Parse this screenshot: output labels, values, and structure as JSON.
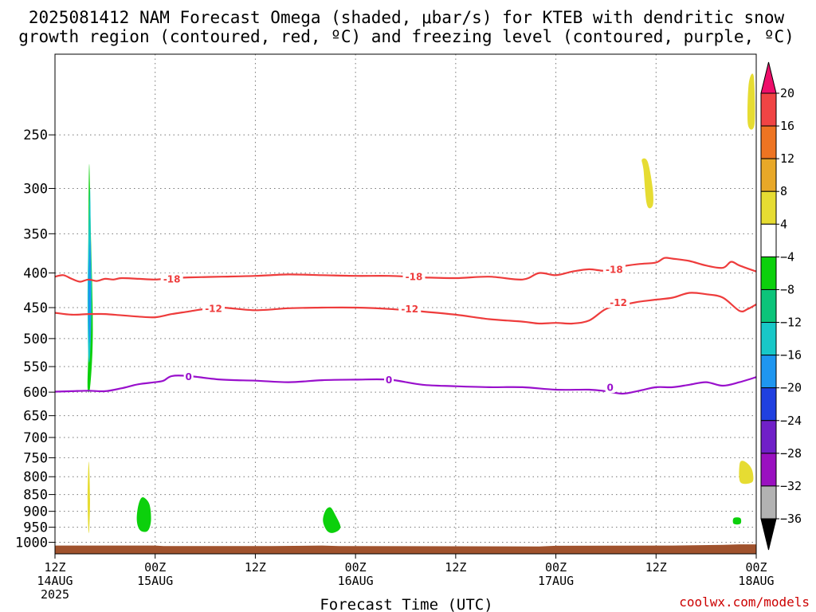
{
  "chart_data": {
    "type": "heatmap",
    "title_lines": [
      "2025081412 NAM Forecast Omega (shaded, μbar/s) for KTEB with dendritic snow",
      "growth region (contoured, red, ºC) and freezing level (contoured, purple, ºC)"
    ],
    "xlabel": "Forecast Time (UTC)",
    "ylabel": "",
    "credit": "coolwx.com/models",
    "x_hours_range": [
      0,
      84
    ],
    "y_pressure_range": [
      1040,
      190
    ],
    "y_ticks": [
      250,
      300,
      350,
      400,
      450,
      500,
      550,
      600,
      650,
      700,
      750,
      800,
      850,
      900,
      950,
      1000
    ],
    "x_ticks": [
      {
        "hour": 0,
        "lines": [
          "12Z",
          "14AUG",
          "2025"
        ]
      },
      {
        "hour": 12,
        "lines": [
          "00Z",
          "15AUG"
        ]
      },
      {
        "hour": 24,
        "lines": [
          "12Z"
        ]
      },
      {
        "hour": 36,
        "lines": [
          "00Z",
          "16AUG"
        ]
      },
      {
        "hour": 48,
        "lines": [
          "12Z"
        ]
      },
      {
        "hour": 60,
        "lines": [
          "00Z",
          "17AUG"
        ]
      },
      {
        "hour": 72,
        "lines": [
          "12Z"
        ]
      },
      {
        "hour": 84,
        "lines": [
          "00Z",
          "18AUG"
        ]
      }
    ],
    "colorbar": {
      "labels": [
        "20",
        "16",
        "12",
        "8",
        "4",
        "−4",
        "−8",
        "−12",
        "−16",
        "−20",
        "−24",
        "−28",
        "−32",
        "−36"
      ],
      "colors": [
        "#ee0e6a",
        "#f04444",
        "#ee7422",
        "#e8a828",
        "#e6dc32",
        "#ffffff",
        "#0cd00c",
        "#0cc47a",
        "#18c8c8",
        "#1e96f0",
        "#2040e0",
        "#7020c8",
        "#9a10c0",
        "#b2b2b2",
        "#000000"
      ]
    },
    "series": [
      {
        "name": "-18",
        "color": "#ee3c3c",
        "x": [
          0,
          1,
          2,
          3,
          4,
          5,
          6,
          7,
          8,
          10,
          12,
          14,
          16,
          20,
          24,
          28,
          32,
          36,
          40,
          44,
          48,
          52,
          56,
          58,
          60,
          62,
          64,
          66,
          68,
          70,
          72,
          73,
          74,
          76,
          78,
          80,
          81,
          82,
          84
        ],
        "y": [
          405,
          403,
          408,
          412,
          409,
          411,
          408,
          409,
          407,
          408,
          409,
          407,
          406,
          405,
          404,
          402,
          403,
          404,
          404,
          406,
          407,
          405,
          409,
          400,
          403,
          398,
          395,
          397,
          391,
          388,
          386,
          380,
          381,
          384,
          390,
          393,
          385,
          390,
          398
        ]
      },
      {
        "name": "-12",
        "color": "#ee3c3c",
        "x": [
          0,
          2,
          4,
          6,
          8,
          10,
          12,
          14,
          16,
          18,
          20,
          24,
          28,
          32,
          36,
          40,
          44,
          48,
          52,
          56,
          58,
          60,
          62,
          64,
          66,
          68,
          70,
          72,
          74,
          76,
          78,
          80,
          82,
          83,
          84
        ],
        "y": [
          458,
          461,
          460,
          460,
          462,
          464,
          465,
          460,
          456,
          452,
          450,
          454,
          451,
          450,
          450,
          452,
          456,
          461,
          468,
          472,
          475,
          474,
          475,
          470,
          452,
          446,
          441,
          438,
          435,
          428,
          430,
          435,
          455,
          452,
          445
        ]
      },
      {
        "name": "0",
        "color": "#9910cc",
        "x": [
          0,
          2,
          4,
          6,
          8,
          10,
          12,
          13,
          14,
          16,
          20,
          24,
          28,
          32,
          36,
          40,
          44,
          48,
          52,
          56,
          60,
          64,
          66,
          68,
          70,
          72,
          74,
          76,
          78,
          80,
          82,
          84
        ],
        "y": [
          599,
          598,
          597,
          598,
          592,
          584,
          580,
          577,
          568,
          568,
          575,
          577,
          580,
          576,
          575,
          575,
          585,
          588,
          590,
          590,
          595,
          595,
          598,
          603,
          597,
          590,
          590,
          585,
          580,
          587,
          580,
          570
        ]
      }
    ],
    "contour_labels": [
      {
        "text": "-18",
        "hour": 14,
        "p": 408,
        "color": "#ee3c3c"
      },
      {
        "text": "-18",
        "hour": 43,
        "p": 405,
        "color": "#ee3c3c"
      },
      {
        "text": "-18",
        "hour": 67,
        "p": 395,
        "color": "#ee3c3c"
      },
      {
        "text": "-12",
        "hour": 19,
        "p": 451,
        "color": "#ee3c3c"
      },
      {
        "text": "-12",
        "hour": 42.5,
        "p": 452,
        "color": "#ee3c3c"
      },
      {
        "text": "-12",
        "hour": 67.5,
        "p": 442,
        "color": "#ee3c3c"
      },
      {
        "text": "0",
        "hour": 16,
        "p": 569,
        "color": "#9910cc"
      },
      {
        "text": "0",
        "hour": 40,
        "p": 575,
        "color": "#9910cc"
      },
      {
        "text": "0",
        "hour": 66.5,
        "p": 590,
        "color": "#9910cc"
      }
    ],
    "omega_patches": [
      {
        "value": -8,
        "color": "#0cd00c",
        "points": [
          [
            3.9,
            591
          ],
          [
            4.0,
            518
          ],
          [
            4.0,
            442
          ],
          [
            4.0,
            350
          ],
          [
            4.1,
            276
          ],
          [
            4.3,
            350
          ],
          [
            4.5,
            442
          ],
          [
            4.5,
            518
          ],
          [
            4.2,
            591
          ]
        ]
      },
      {
        "value": -12,
        "color": "#18c8c8",
        "points": [
          [
            4.0,
            530
          ],
          [
            3.9,
            440
          ],
          [
            4.0,
            360
          ],
          [
            4.2,
            300
          ],
          [
            4.3,
            360
          ],
          [
            4.4,
            440
          ],
          [
            4.2,
            530
          ]
        ]
      },
      {
        "value": -16,
        "color": "#1e96f0",
        "points": [
          [
            4.1,
            500
          ],
          [
            4.0,
            440
          ],
          [
            4.1,
            380
          ],
          [
            4.25,
            360
          ],
          [
            4.3,
            440
          ],
          [
            4.25,
            500
          ]
        ]
      },
      {
        "value": 4,
        "color": "#e6dc32",
        "points": [
          [
            4.0,
            957
          ],
          [
            3.9,
            862
          ],
          [
            4.05,
            760
          ],
          [
            4.2,
            862
          ],
          [
            4.1,
            957
          ]
        ]
      },
      {
        "value": -8,
        "color": "#0cd00c",
        "points": [
          [
            10.2,
            960
          ],
          [
            9.8,
            928
          ],
          [
            10.0,
            880
          ],
          [
            10.5,
            858
          ],
          [
            11.3,
            878
          ],
          [
            11.5,
            928
          ],
          [
            11.1,
            962
          ]
        ]
      },
      {
        "value": -8,
        "color": "#0cd00c",
        "points": [
          [
            32.6,
            962
          ],
          [
            32.1,
            930
          ],
          [
            32.4,
            898
          ],
          [
            33.0,
            888
          ],
          [
            33.6,
            912
          ],
          [
            34.2,
            950
          ],
          [
            33.4,
            968
          ]
        ]
      },
      {
        "value": -8,
        "color": "#0cd00c",
        "points": [
          [
            81.3,
            939
          ],
          [
            81.3,
            921
          ],
          [
            82.1,
            921
          ],
          [
            82.1,
            939
          ]
        ]
      },
      {
        "value": 4,
        "color": "#e6dc32",
        "points": [
          [
            70.5,
            282
          ],
          [
            70.3,
            272
          ],
          [
            71.0,
            274
          ],
          [
            71.6,
            300
          ],
          [
            71.6,
            318
          ],
          [
            70.9,
            317
          ]
        ]
      },
      {
        "value": 4,
        "color": "#e6dc32",
        "points": [
          [
            82.1,
            815
          ],
          [
            82.0,
            768
          ],
          [
            82.4,
            758
          ],
          [
            83.2,
            770
          ],
          [
            83.6,
            790
          ],
          [
            83.5,
            815
          ]
        ]
      },
      {
        "value": 4,
        "color": "#e6dc32",
        "points": [
          [
            83.0,
            241
          ],
          [
            83.1,
            210
          ],
          [
            83.7,
            205
          ],
          [
            83.8,
            241
          ]
        ]
      }
    ],
    "ground_color": "#a0522d",
    "ground_top_p": [
      [
        0,
        1011
      ],
      [
        12,
        1011
      ],
      [
        13,
        1013
      ],
      [
        25,
        1013
      ],
      [
        26,
        1013
      ],
      [
        32,
        1011
      ],
      [
        34,
        1013
      ],
      [
        58,
        1014
      ],
      [
        60,
        1012
      ],
      [
        74,
        1011
      ],
      [
        80,
        1009
      ],
      [
        82,
        1007
      ],
      [
        84,
        1007
      ]
    ]
  }
}
